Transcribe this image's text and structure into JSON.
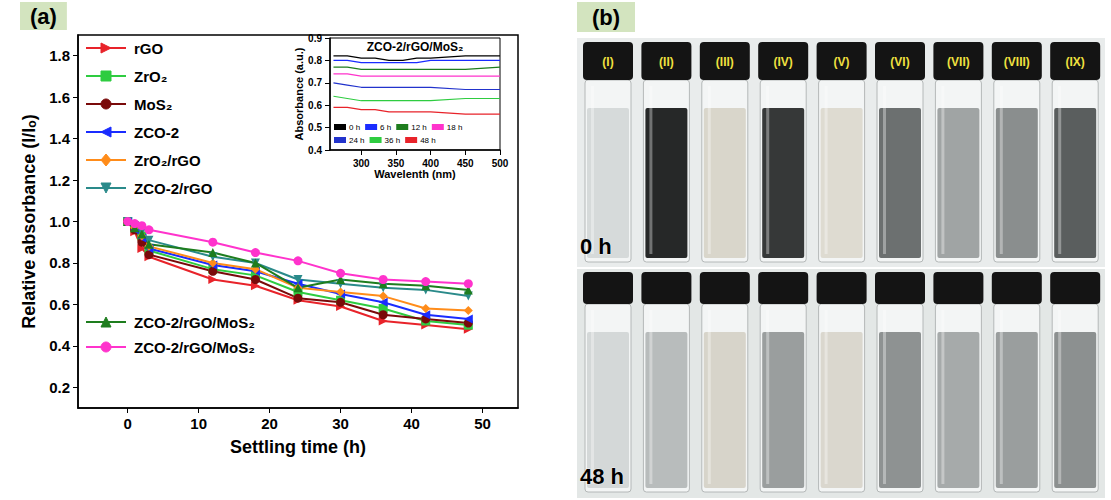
{
  "chart_data": [
    {
      "type": "line",
      "title": "(a)",
      "x_label": "Settling time (h)",
      "y_label": "Relative absorbance (I/Iₒ)",
      "x": [
        0,
        1,
        2,
        3,
        12,
        18,
        24,
        30,
        36,
        42,
        48
      ],
      "xlim": [
        -7,
        55
      ],
      "xticks": [
        0,
        10,
        20,
        30,
        40,
        50
      ],
      "ylim": [
        0.1,
        1.9
      ],
      "yticks": [
        0.2,
        0.4,
        0.6,
        0.8,
        {
          "value": 1,
          "label": "1.0"
        },
        1.2,
        1.4,
        1.6,
        1.8
      ],
      "grid": false,
      "legend": "upper left",
      "series": [
        {
          "name": "rGO",
          "color": "#e8232a",
          "marker": "triangle-right",
          "values": [
            1.0,
            0.95,
            0.87,
            0.83,
            0.72,
            0.69,
            0.62,
            0.59,
            0.52,
            0.5,
            0.48
          ]
        },
        {
          "name": "ZrO₂",
          "color": "#2ecc40",
          "marker": "square",
          "values": [
            1.0,
            0.97,
            0.93,
            0.86,
            0.77,
            0.74,
            0.66,
            0.62,
            0.58,
            0.52,
            0.5
          ]
        },
        {
          "name": "MoS₂",
          "color": "#7a0a0a",
          "marker": "circle",
          "values": [
            1.0,
            0.96,
            0.9,
            0.84,
            0.76,
            0.72,
            0.63,
            0.61,
            0.55,
            0.53,
            0.51
          ]
        },
        {
          "name": "ZCO-2",
          "color": "#1a2cff",
          "marker": "triangle-left",
          "values": [
            1.0,
            0.96,
            0.92,
            0.87,
            0.79,
            0.76,
            0.7,
            0.65,
            0.61,
            0.55,
            0.53
          ]
        },
        {
          "name": "ZrO₂/rGO",
          "color": "#ff8c1a",
          "marker": "diamond",
          "values": [
            1.0,
            0.97,
            0.93,
            0.88,
            0.8,
            0.77,
            0.68,
            0.66,
            0.64,
            0.58,
            0.57
          ]
        },
        {
          "name": "ZCO-2/rGO",
          "color": "#2a8a8a",
          "marker": "triangle-down",
          "values": [
            1.0,
            0.98,
            0.95,
            0.91,
            0.83,
            0.8,
            0.72,
            0.7,
            0.68,
            0.67,
            0.64
          ]
        },
        {
          "name": "ZCO-2/rGO/MoS₂",
          "color": "#1e7d1e",
          "marker": "triangle",
          "values": [
            1.0,
            0.97,
            0.94,
            0.89,
            0.85,
            0.8,
            0.68,
            0.72,
            0.7,
            0.69,
            0.67
          ]
        },
        {
          "name": "ZCO-2/rGO/MoS₂",
          "color": "#ff33cc",
          "marker": "circle",
          "values": [
            1.0,
            0.99,
            0.98,
            0.96,
            0.9,
            0.85,
            0.81,
            0.75,
            0.72,
            0.71,
            0.7
          ]
        }
      ]
    },
    {
      "type": "line",
      "title": "ZCO-2/rGO/MoS₂",
      "x_label": "Wavelenth (nm)",
      "y_label": "Absorbance (a.u.)",
      "x": [
        260,
        280,
        300,
        320,
        340,
        360,
        380,
        400,
        450,
        500
      ],
      "xlim": [
        255,
        500
      ],
      "xticks": [
        300,
        350,
        400,
        450,
        500
      ],
      "ylim": [
        0.4,
        0.9
      ],
      "yticks": [
        0.4,
        0.5,
        0.6,
        0.7,
        0.8,
        0.9
      ],
      "grid": false,
      "legend": "lower left",
      "series": [
        {
          "name": "0 h",
          "color": "#000000",
          "values": [
            0.82,
            0.82,
            0.81,
            0.81,
            0.8,
            0.8,
            0.81,
            0.81,
            0.82,
            0.82
          ]
        },
        {
          "name": "6 h",
          "color": "#1a2cff",
          "values": [
            0.8,
            0.8,
            0.79,
            0.79,
            0.79,
            0.79,
            0.79,
            0.8,
            0.8,
            0.8
          ]
        },
        {
          "name": "12 h",
          "color": "#1e7d1e",
          "values": [
            0.77,
            0.77,
            0.76,
            0.76,
            0.76,
            0.76,
            0.76,
            0.76,
            0.76,
            0.77
          ]
        },
        {
          "name": "18 h",
          "color": "#ff33cc",
          "values": [
            0.74,
            0.74,
            0.73,
            0.73,
            0.73,
            0.73,
            0.73,
            0.73,
            0.73,
            0.73
          ]
        },
        {
          "name": "24 h",
          "color": "#2233cc",
          "values": [
            0.7,
            0.69,
            0.68,
            0.68,
            0.68,
            0.68,
            0.68,
            0.68,
            0.67,
            0.67
          ]
        },
        {
          "name": "36 h",
          "color": "#2ecc40",
          "values": [
            0.64,
            0.63,
            0.62,
            0.62,
            0.62,
            0.62,
            0.62,
            0.62,
            0.63,
            0.63
          ]
        },
        {
          "name": "48 h",
          "color": "#e8232a",
          "values": [
            0.59,
            0.59,
            0.58,
            0.58,
            0.57,
            0.57,
            0.57,
            0.57,
            0.56,
            0.56
          ]
        }
      ]
    }
  ],
  "photo": {
    "title": "(b)",
    "labels": [
      "(I)",
      "(II)",
      "(III)",
      "(IV)",
      "(V)",
      "(VI)",
      "(VII)",
      "(VIII)",
      "(IX)"
    ],
    "rows": [
      {
        "label": "0 h",
        "colors": [
          "#d6dada",
          "#262828",
          "#d9d6cb",
          "#363838",
          "#dedbd1",
          "#6c7070",
          "#a0a4a4",
          "#8a8e8e",
          "#5a5e5e"
        ]
      },
      {
        "label": "48 h",
        "colors": [
          "#d4d8d8",
          "#b8bcbc",
          "#d7d4ca",
          "#9a9e9e",
          "#dad7ce",
          "#8e9292",
          "#a6aaaa",
          "#9a9e9e",
          "#8c9090"
        ]
      }
    ]
  }
}
